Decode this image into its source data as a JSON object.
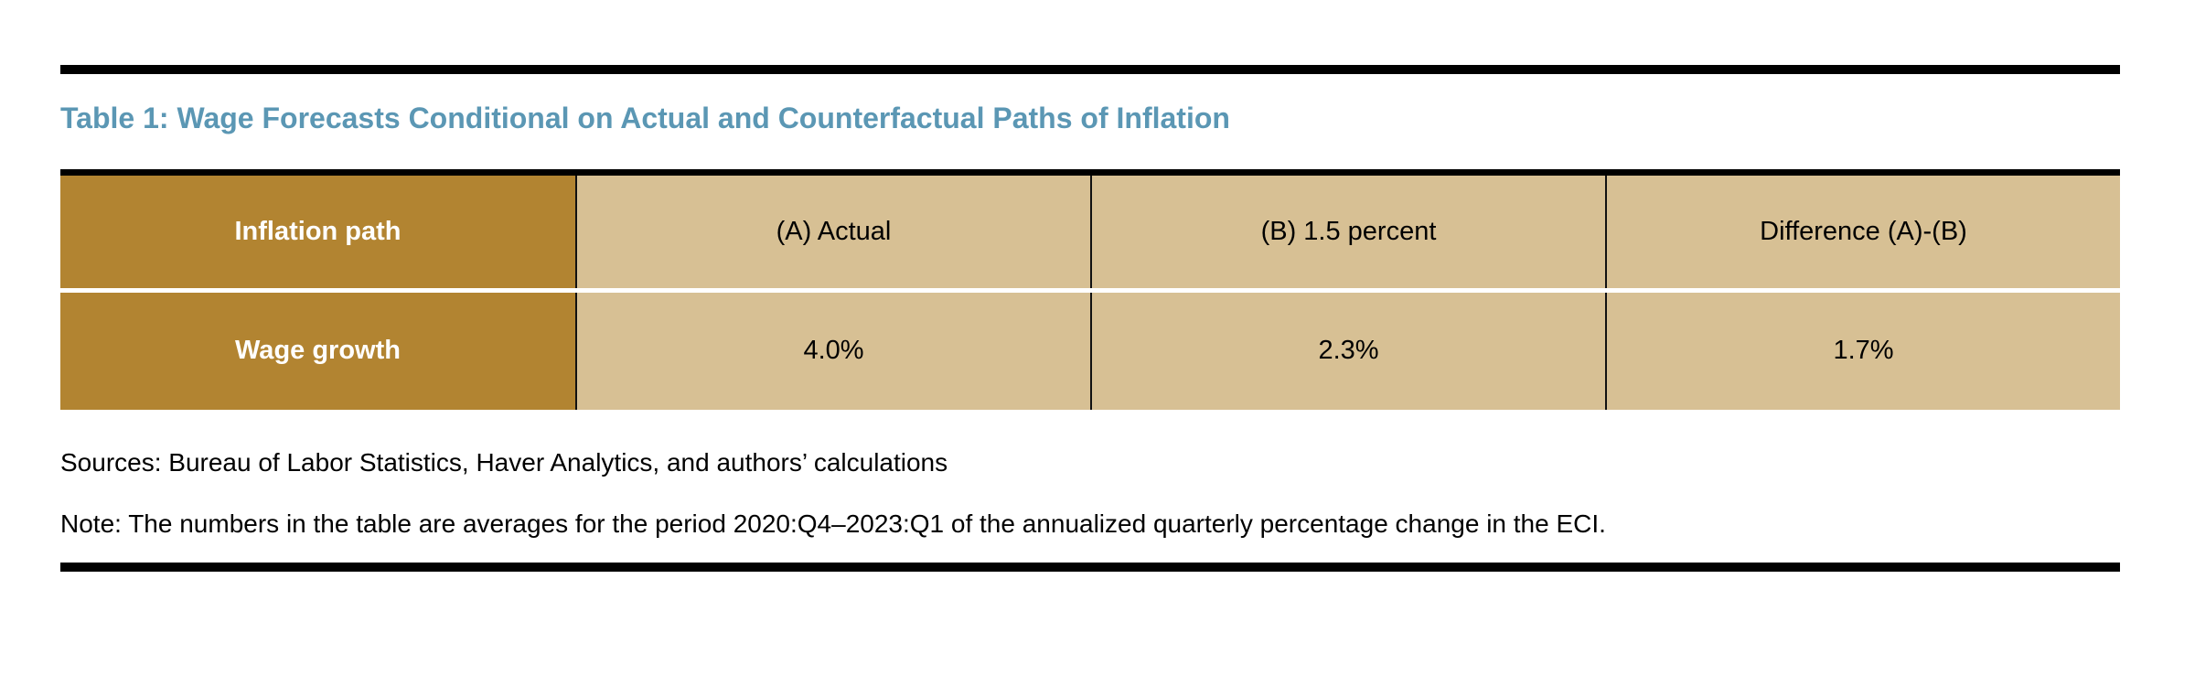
{
  "title": "Table 1: Wage Forecasts Conditional on Actual and Counterfactual Paths of Inflation",
  "table": {
    "header": {
      "row_label": "Inflation path",
      "columns": [
        "(A) Actual",
        "(B) 1.5 percent",
        "Difference (A)-(B)"
      ]
    },
    "rows": [
      {
        "label": "Wage growth",
        "values": [
          "4.0%",
          "2.3%",
          "1.7%"
        ]
      }
    ]
  },
  "notes": {
    "sources": "Sources: Bureau of Labor Statistics, Haver Analytics, and authors’ calculations",
    "note": "Note: The numbers in the table are averages for the period 2020:Q4–2023:Q1 of the annualized quarterly percentage change in the ECI."
  },
  "colors": {
    "title_blue": "#5b97b4",
    "row_label_gold": "#b28431",
    "data_cell_tan": "#d7c094",
    "rule_black": "#000000",
    "label_text_white": "#ffffff",
    "body_text_black": "#000000"
  },
  "chart_data": {
    "type": "table",
    "title": "Table 1: Wage Forecasts Conditional on Actual and Counterfactual Paths of Inflation",
    "columns": [
      "Inflation path",
      "(A) Actual",
      "(B) 1.5 percent",
      "Difference (A)-(B)"
    ],
    "rows": [
      [
        "Wage growth",
        "4.0%",
        "2.3%",
        "1.7%"
      ]
    ],
    "values": {
      "actual": 4.0,
      "counterfactual_1_5_percent": 2.3,
      "difference": 1.7
    }
  }
}
